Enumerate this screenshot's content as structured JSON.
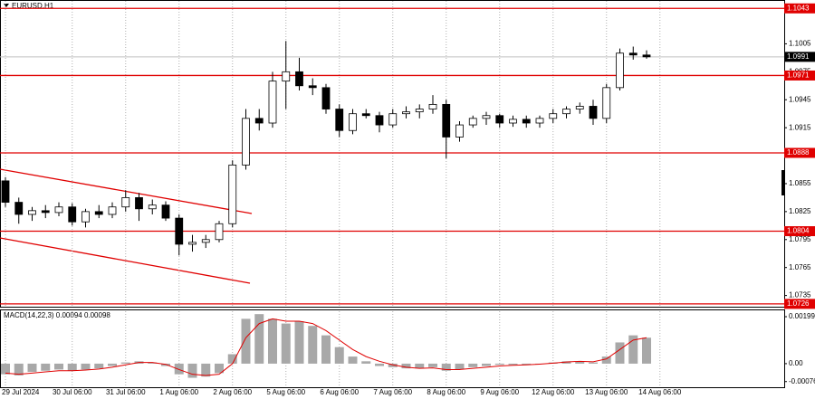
{
  "chart_data": [
    {
      "type": "candlestick",
      "title": "EURUSD,H1",
      "categories": [
        "29 Jul 2024",
        null,
        null,
        null,
        null,
        "30 Jul 06:00",
        null,
        null,
        null,
        "31 Jul 06:00",
        null,
        null,
        null,
        "1 Aug 06:00",
        null,
        null,
        null,
        "2 Aug 06:00",
        null,
        null,
        null,
        "5 Aug 06:00",
        null,
        null,
        null,
        "6 Aug 06:00",
        null,
        null,
        null,
        "7 Aug 06:00",
        null,
        null,
        null,
        "8 Aug 06:00",
        null,
        null,
        null,
        "9 Aug 06:00",
        null,
        null,
        null,
        "12 Aug 06:00",
        null,
        null,
        null,
        "13 Aug 06:00",
        null,
        null,
        null,
        "14 Aug 06:00"
      ],
      "open": [
        1.0858,
        1.0835,
        1.0822,
        1.0826,
        1.0824,
        1.083,
        1.0814,
        1.0825,
        1.0822,
        1.083,
        1.084,
        1.0828,
        1.0832,
        1.0818,
        1.079,
        1.0792,
        1.0795,
        1.0812,
        1.0875,
        1.0925,
        1.092,
        1.0965,
        1.0975,
        1.096,
        1.0958,
        1.0935,
        1.0912,
        1.093,
        1.0928,
        1.0918,
        1.093,
        1.0932,
        1.0935,
        1.094,
        1.0905,
        1.0918,
        1.0925,
        1.0928,
        1.092,
        1.0924,
        1.092,
        1.0925,
        1.093,
        1.0935,
        1.0938,
        1.0925,
        1.0958,
        1.0995,
        1.0993,
        null
      ],
      "high": [
        1.0862,
        1.084,
        1.083,
        1.0832,
        1.0835,
        1.0834,
        1.0828,
        1.0832,
        1.0835,
        1.0848,
        1.0845,
        1.0838,
        1.0836,
        1.0822,
        1.08,
        1.08,
        1.0815,
        1.088,
        1.0935,
        1.0935,
        1.0975,
        1.1008,
        1.099,
        1.0968,
        1.0962,
        1.094,
        1.0935,
        1.0935,
        1.0932,
        1.0935,
        1.0938,
        1.094,
        1.095,
        1.0945,
        1.0922,
        1.0928,
        1.0932,
        1.093,
        1.0928,
        1.0928,
        1.0928,
        1.0935,
        1.0938,
        1.0942,
        1.0945,
        1.0962,
        1.1,
        1.1002,
        1.0998,
        null
      ],
      "low": [
        1.083,
        1.0812,
        1.0815,
        1.0818,
        1.082,
        1.081,
        1.0808,
        1.0818,
        1.0818,
        1.0825,
        1.0815,
        1.0822,
        1.0815,
        1.0778,
        1.0782,
        1.0786,
        1.0792,
        1.0808,
        1.087,
        1.0912,
        1.0915,
        1.0935,
        1.0955,
        1.095,
        1.093,
        1.0905,
        1.0908,
        1.0925,
        1.091,
        1.0915,
        1.0925,
        1.0925,
        1.093,
        1.0882,
        1.09,
        1.0915,
        1.0918,
        1.0915,
        1.0916,
        1.0915,
        1.0915,
        1.092,
        1.0925,
        1.093,
        1.0918,
        1.092,
        1.0955,
        1.0988,
        1.0989,
        null
      ],
      "close": [
        1.0835,
        1.0822,
        1.0826,
        1.0824,
        1.083,
        1.0814,
        1.0825,
        1.0822,
        1.083,
        1.084,
        1.0828,
        1.0832,
        1.0818,
        1.079,
        1.0792,
        1.0795,
        1.0812,
        1.0875,
        1.0925,
        1.092,
        1.0965,
        1.0975,
        1.096,
        1.0958,
        1.0935,
        1.0912,
        1.093,
        1.0928,
        1.0918,
        1.093,
        1.0932,
        1.0935,
        1.094,
        1.0905,
        1.0918,
        1.0925,
        1.0928,
        1.092,
        1.0924,
        1.092,
        1.0925,
        1.093,
        1.0935,
        1.0938,
        1.0925,
        1.0958,
        1.0995,
        1.0993,
        1.0991,
        null
      ],
      "ylim": [
        1.0722,
        1.1052
      ],
      "yticks": [
        1.1005,
        1.0975,
        1.0945,
        1.0915,
        1.0855,
        1.0825,
        1.0795,
        1.0765,
        1.0735
      ],
      "levels": [
        1.1043,
        1.0971,
        1.0888,
        1.0804,
        1.0726
      ],
      "level_color": "#e00000",
      "last_price": 1.0991,
      "grid": true
    },
    {
      "type": "macd",
      "title": "MACD(14,22,3) 0.00094 0.00098",
      "series": [
        {
          "type": "bar",
          "color": "#a8a8a8",
          "values": [
            -0.00045,
            -0.0005,
            -0.00035,
            -0.0003,
            -0.00025,
            -0.0003,
            -0.00025,
            -0.0002,
            -0.0001,
            5e-05,
            0.0001,
            5e-05,
            -0.0001,
            -0.00045,
            -0.0006,
            -0.00055,
            -0.0004,
            0.0004,
            0.0019,
            0.0021,
            0.0019,
            0.0017,
            0.0018,
            0.0016,
            0.0012,
            0.0007,
            0.0003,
            0.0001,
            -0.0001,
            -0.00015,
            -0.0002,
            -0.0002,
            -0.00015,
            -0.0003,
            -0.00025,
            -0.00015,
            -0.0001,
            -5e-05,
            -5e-05,
            -5e-05,
            0,
            5e-05,
            0.0001,
            0.0001,
            5e-05,
            0.0003,
            0.0009,
            0.0012,
            0.0011,
            null
          ]
        },
        {
          "type": "line",
          "color": "#e00000",
          "values": [
            -0.0004,
            -0.00045,
            -0.0004,
            -0.00035,
            -0.0003,
            -0.0003,
            -0.00027,
            -0.00023,
            -0.00015,
            -5e-05,
            5e-05,
            5e-05,
            -3e-05,
            -0.00025,
            -0.00045,
            -0.0005,
            -0.00045,
            0,
            0.0011,
            0.0017,
            0.0019,
            0.0018,
            0.0018,
            0.0017,
            0.0014,
            0.001,
            0.0006,
            0.0003,
            0.0001,
            -5e-05,
            -0.00015,
            -0.0002,
            -0.00018,
            -0.00025,
            -0.00025,
            -0.0002,
            -0.00015,
            -0.0001,
            -7e-05,
            -5e-05,
            -2e-05,
            2e-05,
            7e-05,
            0.0001,
            8e-05,
            0.0002,
            0.0006,
            0.001,
            0.0011,
            null
          ]
        }
      ],
      "ylim": [
        -0.001,
        0.00226
      ],
      "yticks": [
        0.00199,
        {
          "value": 0,
          "label": "0.00"
        },
        -0.00076
      ]
    }
  ]
}
